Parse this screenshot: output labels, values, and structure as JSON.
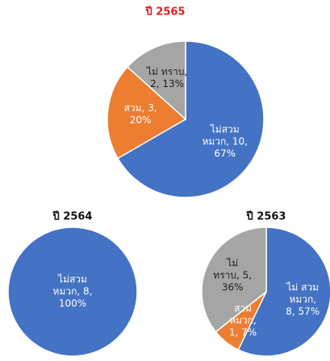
{
  "chart_data": [
    {
      "type": "pie",
      "title": "ปี 2565",
      "title_color": "#e0201b",
      "values": [
        10,
        3,
        2
      ],
      "value_labels": [
        "ไม่สวม หมวก, 10, 67%",
        "สวม, 3, 20%",
        "ไม่ ทราบ, 2, 13%"
      ],
      "colors": [
        "#4472c4",
        "#ed7d31",
        "#a5a5a5"
      ],
      "label_colors": [
        "#ffffff",
        "#ffffff",
        "#222222"
      ]
    },
    {
      "type": "pie",
      "title": "ปี 2564",
      "title_color": "#111111",
      "values": [
        8
      ],
      "value_labels": [
        "ไม่สวม หมวก, 8, 100%"
      ],
      "colors": [
        "#4472c4"
      ],
      "label_colors": [
        "#ffffff"
      ]
    },
    {
      "type": "pie",
      "title": "ปี 2563",
      "title_color": "#111111",
      "values": [
        8,
        1,
        5
      ],
      "value_labels": [
        "ไม่ สวม หมวก, 8, 57%",
        "สวม หมวก, 1, 7%",
        "ไม่ ทราบ, 5, 36%"
      ],
      "colors": [
        "#4472c4",
        "#ed7d31",
        "#a5a5a5"
      ],
      "label_colors": [
        "#ffffff",
        "#ffffff",
        "#222222"
      ]
    }
  ]
}
